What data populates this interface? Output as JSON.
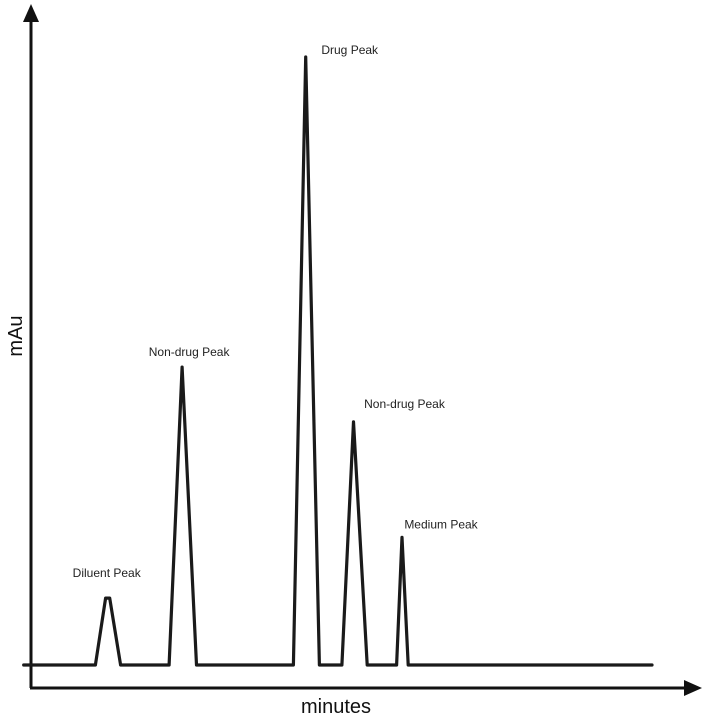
{
  "chart_data": {
    "type": "line",
    "title": "",
    "xlabel": "minutes",
    "ylabel": "mAu",
    "grid": false,
    "legend": "none",
    "colors": {
      "trace": "#1a1a1a",
      "axis": "#111111",
      "text": "#222222"
    },
    "baseline": 0,
    "xlim": [
      0,
      100
    ],
    "ylim": [
      0,
      100
    ],
    "series": [
      {
        "points": [
          [
            2,
            0
          ],
          [
            12.5,
            0
          ],
          [
            14,
            11
          ],
          [
            14.6,
            11
          ],
          [
            16.2,
            0
          ],
          [
            23.3,
            0
          ],
          [
            25.2,
            49
          ],
          [
            27.3,
            0
          ],
          [
            31.5,
            0
          ],
          [
            41.5,
            0
          ],
          [
            43.3,
            100
          ],
          [
            45.3,
            0
          ],
          [
            48.6,
            0
          ],
          [
            50.3,
            40
          ],
          [
            52.3,
            0
          ],
          [
            56.6,
            0
          ],
          [
            57.4,
            21
          ],
          [
            58.3,
            0
          ],
          [
            94,
            0
          ]
        ]
      }
    ],
    "annotations": [
      {
        "text": "Diluent Peak",
        "x": 14.3,
        "y": 11
      },
      {
        "text": "Non-drug Peak",
        "x": 25.2,
        "y": 49
      },
      {
        "text": "Drug Peak",
        "x": 43.3,
        "y": 100
      },
      {
        "text": "Non-drug Peak",
        "x": 50.3,
        "y": 40
      },
      {
        "text": "Medium Peak",
        "x": 57.4,
        "y": 21
      }
    ]
  }
}
